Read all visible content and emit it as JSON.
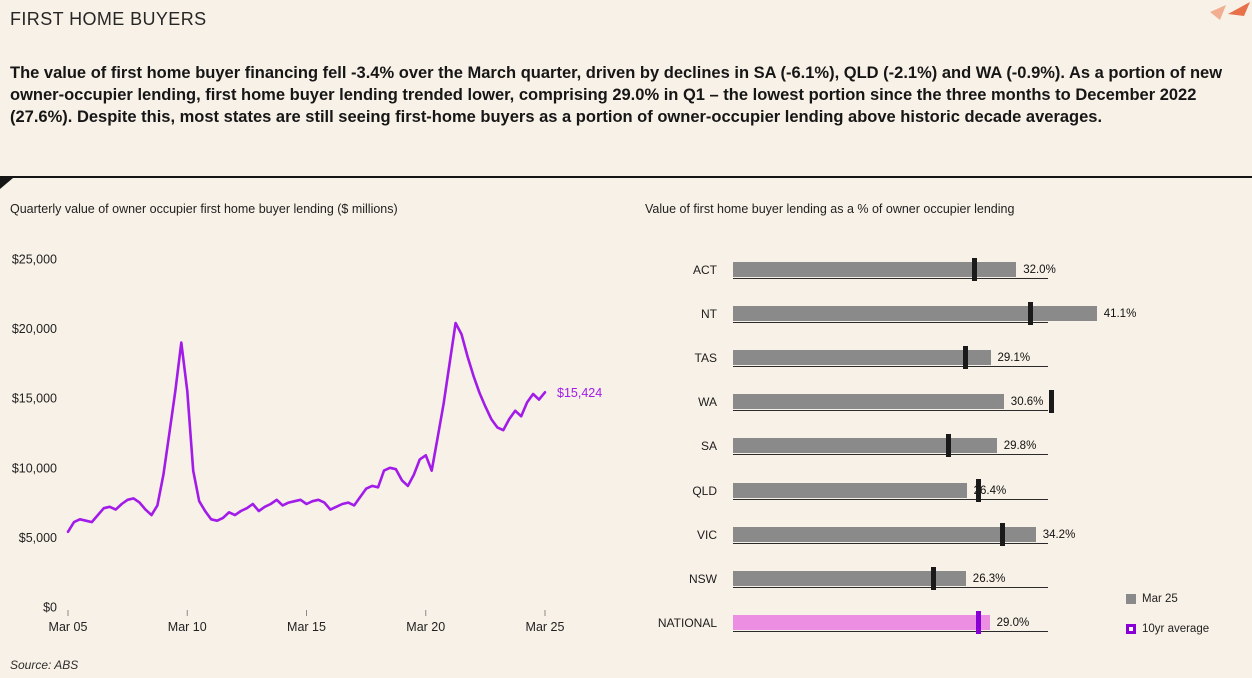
{
  "header": {
    "title": "FIRST HOME BUYERS",
    "summary": "The value of first home buyer financing fell -3.4% over the March quarter, driven by declines in SA (-6.1%), QLD (-2.1%) and WA (-0.9%). As a portion of new owner-occupier lending, first home buyer lending trended lower, comprising 29.0% in Q1 – the lowest portion since the three months to December 2022 (27.6%). Despite this, most states are still seeing first-home buyers as a portion of owner-occupier lending above historic decade averages."
  },
  "footer": {
    "source": "Source: ABS"
  },
  "colors": {
    "background": "#f8f1e7",
    "accent_purple": "#A21BE8",
    "bar_gray": "#8a8a8a",
    "marker_black": "#1a1a1a",
    "national_bar": "#EC8FE3",
    "national_marker": "#8800D6",
    "deco_coral": "#E8714A",
    "deco_coral_light": "#F2AE90"
  },
  "chart_data": [
    {
      "type": "line",
      "title": "Quarterly value of owner occupier first home buyer lending ($ millions)",
      "x_ticks": [
        "Mar 05",
        "Mar 10",
        "Mar 15",
        "Mar 20",
        "Mar 25"
      ],
      "y_ticks": [
        "$0",
        "$5,000",
        "$10,000",
        "$15,000",
        "$20,000",
        "$25,000"
      ],
      "ylim": [
        0,
        25000
      ],
      "frequency": "quarterly",
      "x_range": [
        "Mar 2005",
        "Mar 2025"
      ],
      "end_label": "$15,424",
      "grid": false,
      "series": [
        {
          "name": "Owner occupier first home buyer lending ($M)",
          "values": [
            5400,
            6100,
            6300,
            6200,
            6100,
            6600,
            7100,
            7200,
            7000,
            7400,
            7700,
            7800,
            7500,
            7000,
            6600,
            7300,
            9500,
            12500,
            15500,
            19000,
            15500,
            9800,
            7600,
            6900,
            6300,
            6200,
            6400,
            6800,
            6600,
            6900,
            7100,
            7400,
            6900,
            7200,
            7400,
            7700,
            7300,
            7500,
            7600,
            7700,
            7400,
            7600,
            7700,
            7500,
            7000,
            7200,
            7400,
            7500,
            7300,
            7900,
            8500,
            8700,
            8600,
            9800,
            10000,
            9900,
            9100,
            8700,
            9500,
            10600,
            10900,
            9800,
            12200,
            14600,
            17500,
            20400,
            19600,
            18000,
            16600,
            15400,
            14400,
            13500,
            12900,
            12700,
            13500,
            14100,
            13700,
            14700,
            15300,
            14900,
            15424
          ]
        }
      ]
    },
    {
      "type": "bar",
      "orientation": "horizontal",
      "title": "Value of first home buyer lending as a % of owner occupier lending",
      "categories": [
        "ACT",
        "NT",
        "TAS",
        "WA",
        "SA",
        "QLD",
        "VIC",
        "NSW",
        "NATIONAL"
      ],
      "series": [
        {
          "name": "Mar 25",
          "values": [
            32.0,
            41.1,
            29.1,
            30.6,
            29.8,
            26.4,
            34.2,
            26.3,
            29.0
          ]
        },
        {
          "name": "10yr average",
          "values": [
            27.3,
            33.6,
            26.3,
            36.0,
            24.3,
            27.7,
            30.5,
            22.6,
            27.7
          ]
        }
      ],
      "value_labels": [
        "32.0%",
        "41.1%",
        "29.1%",
        "30.6%",
        "29.8%",
        "26.4%",
        "34.2%",
        "26.3%",
        "29.0%"
      ],
      "xlim": [
        0,
        45
      ],
      "legend": [
        "Mar 25",
        "10yr average"
      ],
      "highlight": "NATIONAL",
      "grid": false
    }
  ]
}
